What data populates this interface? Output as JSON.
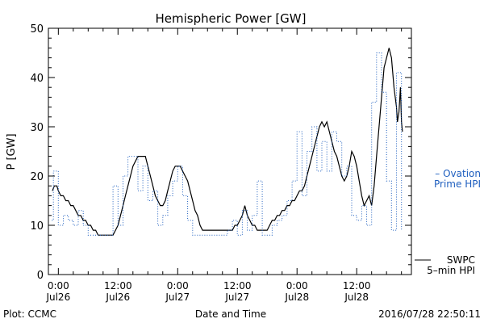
{
  "chart_data": {
    "type": "line",
    "title": "Hemispheric Power [GW]",
    "ylabel": "P [GW]",
    "xlabel": "Date and Time",
    "ylim": [
      0,
      50
    ],
    "yticks": [
      0,
      10,
      20,
      30,
      40,
      50
    ],
    "x_unit": "hours from 2016-07-26 00:00 UTC",
    "xlim": [
      -2,
      71
    ],
    "xticks": [
      {
        "x": 0,
        "line1": "0:00",
        "line2": "Jul26"
      },
      {
        "x": 12,
        "line1": "12:00",
        "line2": "Jul26"
      },
      {
        "x": 24,
        "line1": "0:00",
        "line2": "Jul27"
      },
      {
        "x": 36,
        "line1": "12:00",
        "line2": "Jul27"
      },
      {
        "x": 48,
        "line1": "0:00",
        "line2": "Jul28"
      },
      {
        "x": 60,
        "line1": "12:00",
        "line2": "Jul28"
      }
    ],
    "legend": [
      {
        "line1": "– Ovation",
        "line2": "Prime HPI",
        "color": "#1f5fbf"
      },
      {
        "line1": "SWPC",
        "line2": "5–min HPI",
        "color": "#000000"
      }
    ],
    "footer_left": "Plot: CCMC",
    "footer_right": "2016/07/28 22:50:11",
    "series": [
      {
        "name": "SWPC 5-min HPI",
        "color": "#000000",
        "style": "solid",
        "points": [
          [
            -1.2,
            17
          ],
          [
            -0.8,
            18
          ],
          [
            -0.3,
            18
          ],
          [
            0,
            17
          ],
          [
            0.5,
            16
          ],
          [
            1,
            16
          ],
          [
            1.5,
            15
          ],
          [
            2,
            15
          ],
          [
            2.5,
            14
          ],
          [
            3,
            14
          ],
          [
            3.5,
            13
          ],
          [
            4,
            12
          ],
          [
            4.5,
            12
          ],
          [
            5,
            11
          ],
          [
            5.5,
            11
          ],
          [
            6,
            10
          ],
          [
            6.5,
            10
          ],
          [
            7,
            9
          ],
          [
            7.5,
            9
          ],
          [
            8,
            8
          ],
          [
            9,
            8
          ],
          [
            10,
            8
          ],
          [
            11,
            8
          ],
          [
            11.5,
            9
          ],
          [
            12,
            10
          ],
          [
            12.5,
            12
          ],
          [
            13,
            14
          ],
          [
            13.5,
            16
          ],
          [
            14,
            18
          ],
          [
            14.5,
            20
          ],
          [
            15,
            22
          ],
          [
            15.5,
            23
          ],
          [
            16,
            24
          ],
          [
            17,
            24
          ],
          [
            17.5,
            24
          ],
          [
            18,
            22
          ],
          [
            18.5,
            20
          ],
          [
            19,
            18
          ],
          [
            19.5,
            16
          ],
          [
            20,
            15
          ],
          [
            20.5,
            14
          ],
          [
            21,
            14
          ],
          [
            21.5,
            15
          ],
          [
            22,
            17
          ],
          [
            22.5,
            19
          ],
          [
            23,
            21
          ],
          [
            23.5,
            22
          ],
          [
            24,
            22
          ],
          [
            24.5,
            22
          ],
          [
            25,
            21
          ],
          [
            25.5,
            20
          ],
          [
            26,
            19
          ],
          [
            26.5,
            17
          ],
          [
            27,
            15
          ],
          [
            27.5,
            13
          ],
          [
            28,
            12
          ],
          [
            28.5,
            10
          ],
          [
            29,
            9
          ],
          [
            30,
            9
          ],
          [
            31,
            9
          ],
          [
            32,
            9
          ],
          [
            33,
            9
          ],
          [
            34,
            9
          ],
          [
            35,
            9
          ],
          [
            35.5,
            10
          ],
          [
            36,
            10
          ],
          [
            36.5,
            11
          ],
          [
            37,
            12
          ],
          [
            37.5,
            14
          ],
          [
            38,
            12
          ],
          [
            38.5,
            11
          ],
          [
            39,
            10
          ],
          [
            39.5,
            10
          ],
          [
            40,
            9
          ],
          [
            41,
            9
          ],
          [
            42,
            9
          ],
          [
            42.5,
            10
          ],
          [
            43,
            11
          ],
          [
            43.5,
            11
          ],
          [
            44,
            12
          ],
          [
            44.5,
            12
          ],
          [
            45,
            13
          ],
          [
            45.5,
            13
          ],
          [
            46,
            14
          ],
          [
            46.5,
            14
          ],
          [
            47,
            15
          ],
          [
            47.5,
            15
          ],
          [
            48,
            16
          ],
          [
            48.5,
            17
          ],
          [
            49,
            17
          ],
          [
            49.5,
            18
          ],
          [
            50,
            20
          ],
          [
            50.5,
            22
          ],
          [
            51,
            24
          ],
          [
            51.5,
            26
          ],
          [
            52,
            28
          ],
          [
            52.5,
            30
          ],
          [
            53,
            31
          ],
          [
            53.5,
            30
          ],
          [
            54,
            31
          ],
          [
            54.5,
            29
          ],
          [
            55,
            27
          ],
          [
            55.5,
            25
          ],
          [
            56,
            24
          ],
          [
            56.5,
            22
          ],
          [
            57,
            20
          ],
          [
            57.5,
            19
          ],
          [
            58,
            20
          ],
          [
            58.5,
            22
          ],
          [
            59,
            25
          ],
          [
            59.5,
            24
          ],
          [
            60,
            22
          ],
          [
            60.5,
            19
          ],
          [
            61,
            16
          ],
          [
            61.5,
            14
          ],
          [
            62,
            15
          ],
          [
            62.5,
            16
          ],
          [
            63,
            14
          ],
          [
            63.5,
            18
          ],
          [
            64,
            24
          ],
          [
            64.5,
            30
          ],
          [
            65,
            36
          ],
          [
            65.5,
            42
          ],
          [
            66,
            44
          ],
          [
            66.5,
            46
          ],
          [
            67,
            44
          ],
          [
            67.5,
            38
          ],
          [
            68,
            34
          ],
          [
            68.2,
            31
          ],
          [
            68.5,
            33
          ],
          [
            68.8,
            38
          ],
          [
            69,
            31
          ],
          [
            69.2,
            29
          ]
        ]
      },
      {
        "name": "Ovation Prime HPI",
        "color": "#1f5fbf",
        "style": "dotted",
        "points": [
          [
            -1.3,
            11
          ],
          [
            -1,
            11
          ],
          [
            -1,
            21
          ],
          [
            0,
            21
          ],
          [
            0,
            10
          ],
          [
            1,
            10
          ],
          [
            1,
            12
          ],
          [
            2,
            12
          ],
          [
            2,
            11
          ],
          [
            3,
            11
          ],
          [
            3,
            10
          ],
          [
            4,
            10
          ],
          [
            4,
            13
          ],
          [
            5,
            13
          ],
          [
            5,
            10
          ],
          [
            6,
            10
          ],
          [
            6,
            8
          ],
          [
            11,
            8
          ],
          [
            11,
            18
          ],
          [
            12,
            18
          ],
          [
            12,
            10
          ],
          [
            13,
            10
          ],
          [
            13,
            20
          ],
          [
            14,
            20
          ],
          [
            14,
            24
          ],
          [
            16,
            24
          ],
          [
            16,
            17
          ],
          [
            17,
            17
          ],
          [
            17,
            22
          ],
          [
            18,
            22
          ],
          [
            18,
            15
          ],
          [
            19,
            15
          ],
          [
            19,
            17
          ],
          [
            20,
            17
          ],
          [
            20,
            10
          ],
          [
            21,
            10
          ],
          [
            21,
            12
          ],
          [
            22,
            12
          ],
          [
            22,
            16
          ],
          [
            23,
            16
          ],
          [
            23,
            19
          ],
          [
            24,
            19
          ],
          [
            24,
            22
          ],
          [
            25,
            22
          ],
          [
            25,
            16
          ],
          [
            26,
            16
          ],
          [
            26,
            11
          ],
          [
            27,
            11
          ],
          [
            27,
            8
          ],
          [
            34,
            8
          ],
          [
            34,
            9
          ],
          [
            35,
            9
          ],
          [
            35,
            11
          ],
          [
            36,
            11
          ],
          [
            36,
            8
          ],
          [
            37,
            8
          ],
          [
            37,
            13
          ],
          [
            38,
            13
          ],
          [
            38,
            9
          ],
          [
            39,
            9
          ],
          [
            39,
            12
          ],
          [
            40,
            12
          ],
          [
            40,
            19
          ],
          [
            41,
            19
          ],
          [
            41,
            8
          ],
          [
            43,
            8
          ],
          [
            43,
            10
          ],
          [
            44,
            10
          ],
          [
            44,
            11
          ],
          [
            45,
            11
          ],
          [
            45,
            12
          ],
          [
            46,
            12
          ],
          [
            46,
            15
          ],
          [
            47,
            15
          ],
          [
            47,
            19
          ],
          [
            48,
            19
          ],
          [
            48,
            29
          ],
          [
            49,
            29
          ],
          [
            49,
            16
          ],
          [
            50,
            16
          ],
          [
            50,
            25
          ],
          [
            51,
            25
          ],
          [
            51,
            30
          ],
          [
            52,
            30
          ],
          [
            52,
            21
          ],
          [
            53,
            21
          ],
          [
            53,
            27
          ],
          [
            54,
            27
          ],
          [
            54,
            21
          ],
          [
            55,
            21
          ],
          [
            55,
            29
          ],
          [
            56,
            29
          ],
          [
            56,
            27
          ],
          [
            57,
            27
          ],
          [
            57,
            20
          ],
          [
            58,
            20
          ],
          [
            58,
            22
          ],
          [
            59,
            22
          ],
          [
            59,
            12
          ],
          [
            60,
            12
          ],
          [
            60,
            11
          ],
          [
            61,
            11
          ],
          [
            61,
            14
          ],
          [
            62,
            14
          ],
          [
            62,
            10
          ],
          [
            63,
            10
          ],
          [
            63,
            35
          ],
          [
            64,
            35
          ],
          [
            64,
            45
          ],
          [
            65,
            45
          ],
          [
            65,
            37
          ],
          [
            66,
            37
          ],
          [
            66,
            19
          ],
          [
            67,
            19
          ],
          [
            67,
            9
          ],
          [
            68,
            9
          ],
          [
            68,
            41
          ],
          [
            69,
            41
          ],
          [
            69,
            9
          ]
        ]
      }
    ]
  }
}
